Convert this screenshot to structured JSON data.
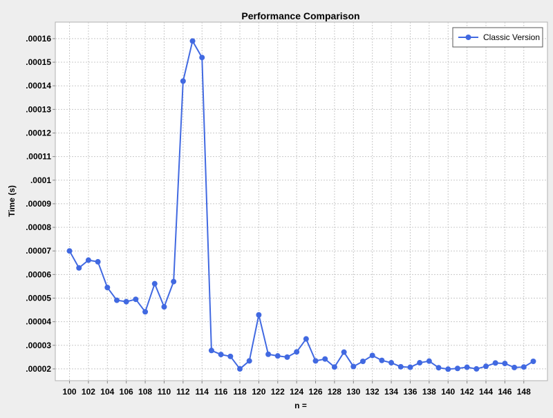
{
  "chart_data": {
    "type": "line",
    "title": "Performance Comparison",
    "xlabel": "n =",
    "ylabel": "Time (s)",
    "xlim": [
      98.5,
      150.5
    ],
    "ylim": [
      1.5e-05,
      0.000167
    ],
    "x_ticks": [
      100,
      102,
      104,
      106,
      108,
      110,
      112,
      114,
      116,
      118,
      120,
      122,
      124,
      126,
      128,
      130,
      132,
      134,
      136,
      138,
      140,
      142,
      144,
      146,
      148
    ],
    "x_tick_labels": [
      "100",
      "102",
      "104",
      "106",
      "108",
      "110",
      "112",
      "114",
      "116",
      "118",
      "120",
      "122",
      "124",
      "126",
      "128",
      "130",
      "132",
      "134",
      "136",
      "138",
      "140",
      "142",
      "144",
      "146",
      "148"
    ],
    "y_ticks": [
      2e-05,
      3e-05,
      4e-05,
      5e-05,
      6e-05,
      7e-05,
      8e-05,
      9e-05,
      0.0001,
      0.00011,
      0.00012,
      0.00013,
      0.00014,
      0.00015,
      0.00016
    ],
    "y_tick_labels": [
      ".00002",
      ".00003",
      ".00004",
      ".00005",
      ".00006",
      ".00007",
      ".00008",
      ".00009",
      ".0001",
      ".00011",
      ".00012",
      ".00013",
      ".00014",
      ".00015",
      ".00016"
    ],
    "grid": true,
    "legend_position": "top-right",
    "series": [
      {
        "name": "Classic Version",
        "color": "#4169e1",
        "x": [
          100,
          101,
          102,
          103,
          104,
          105,
          106,
          107,
          108,
          109,
          110,
          111,
          112,
          113,
          114,
          115,
          116,
          117,
          118,
          119,
          120,
          121,
          122,
          123,
          124,
          125,
          126,
          127,
          128,
          129,
          130,
          131,
          132,
          133,
          134,
          135,
          136,
          137,
          138,
          139,
          140,
          141,
          142,
          143,
          144,
          145,
          146,
          147,
          148,
          149
        ],
        "values": [
          7e-05,
          6.28e-05,
          6.61e-05,
          6.54e-05,
          5.45e-05,
          4.91e-05,
          4.85e-05,
          4.95e-05,
          4.42e-05,
          5.61e-05,
          4.63e-05,
          5.7e-05,
          0.000142,
          0.000159,
          0.000152,
          2.78e-05,
          2.61e-05,
          2.53e-05,
          2e-05,
          2.34e-05,
          4.29e-05,
          2.62e-05,
          2.55e-05,
          2.5e-05,
          2.72e-05,
          3.27e-05,
          2.34e-05,
          2.42e-05,
          2.08e-05,
          2.71e-05,
          2.1e-05,
          2.32e-05,
          2.57e-05,
          2.36e-05,
          2.26e-05,
          2.09e-05,
          2.07e-05,
          2.26e-05,
          2.33e-05,
          2.05e-05,
          1.99e-05,
          2.02e-05,
          2.07e-05,
          2e-05,
          2.11e-05,
          2.25e-05,
          2.23e-05,
          2.06e-05,
          2.08e-05,
          2.32e-05
        ]
      }
    ]
  }
}
